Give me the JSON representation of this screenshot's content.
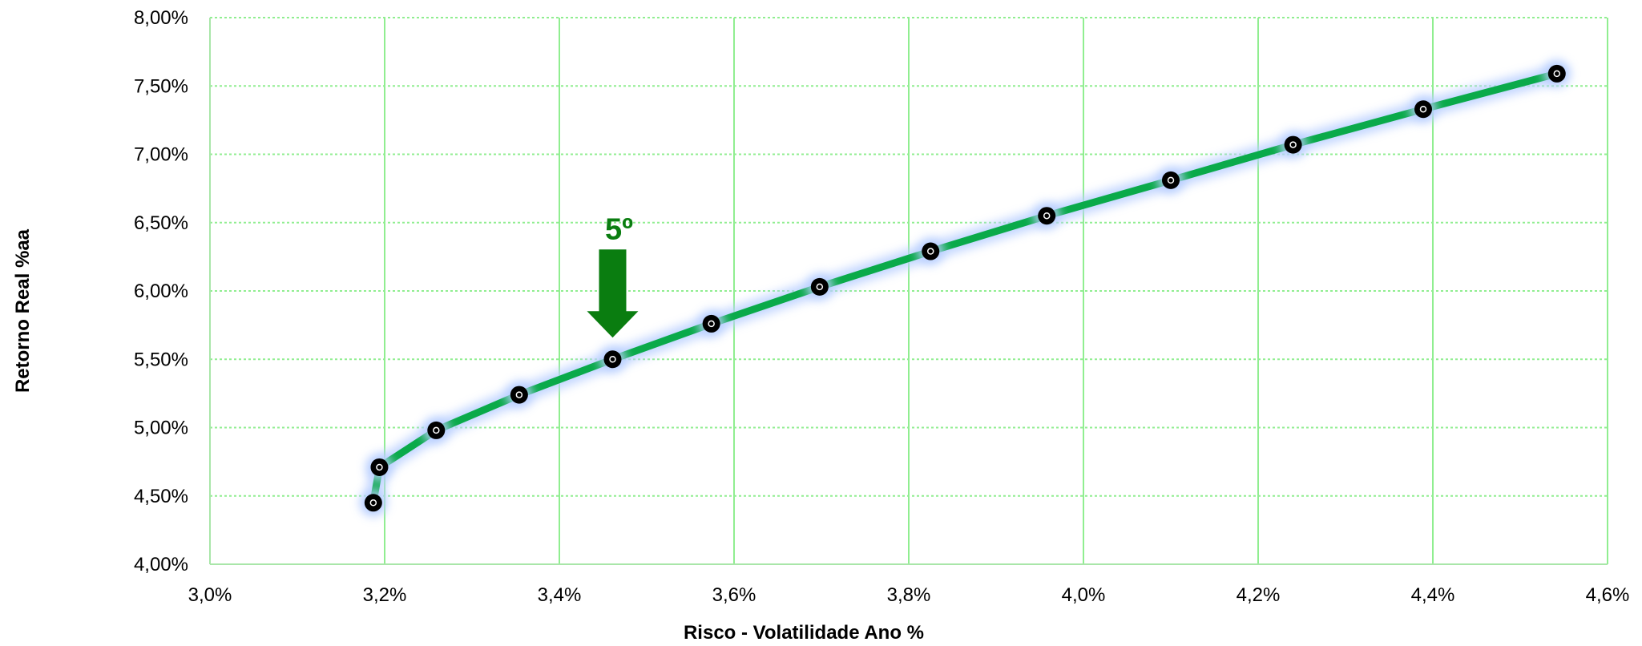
{
  "chart_data": {
    "type": "line",
    "title": "",
    "xlabel": "Risco - Volatilidade Ano %",
    "ylabel": "Retorno Real %aa",
    "xlim": [
      3.0,
      4.6
    ],
    "ylim": [
      4.0,
      8.0
    ],
    "x_ticks": [
      "3,0%",
      "3,2%",
      "3,4%",
      "3,6%",
      "3,8%",
      "4,0%",
      "4,2%",
      "4,4%",
      "4,6%"
    ],
    "y_ticks": [
      "4,00%",
      "4,50%",
      "5,00%",
      "5,50%",
      "6,00%",
      "6,50%",
      "7,00%",
      "7,50%",
      "8,00%"
    ],
    "x_tick_values": [
      3.0,
      3.2,
      3.4,
      3.6,
      3.8,
      4.0,
      4.2,
      4.4,
      4.6
    ],
    "y_tick_values": [
      4.0,
      4.5,
      5.0,
      5.5,
      6.0,
      6.5,
      7.0,
      7.5,
      8.0
    ],
    "grid": true,
    "legend": "none",
    "series": [
      {
        "x": [
          3.187,
          3.194,
          3.259,
          3.354,
          3.461,
          3.574,
          3.698,
          3.825,
          3.958,
          4.1,
          4.24,
          4.389,
          4.542
        ],
        "y": [
          4.45,
          4.71,
          4.98,
          5.24,
          5.5,
          5.76,
          6.03,
          6.29,
          6.55,
          6.81,
          7.07,
          7.33,
          7.59
        ]
      }
    ],
    "annotations": [
      {
        "text": "5º",
        "point_index": 4
      }
    ],
    "colors": {
      "line": "#0aaa4a",
      "grid": "#90ee90",
      "axis": "#a9e6a9",
      "marker": "#000000",
      "glow": "#b8cfff",
      "annotation": "#0a7d10"
    }
  }
}
